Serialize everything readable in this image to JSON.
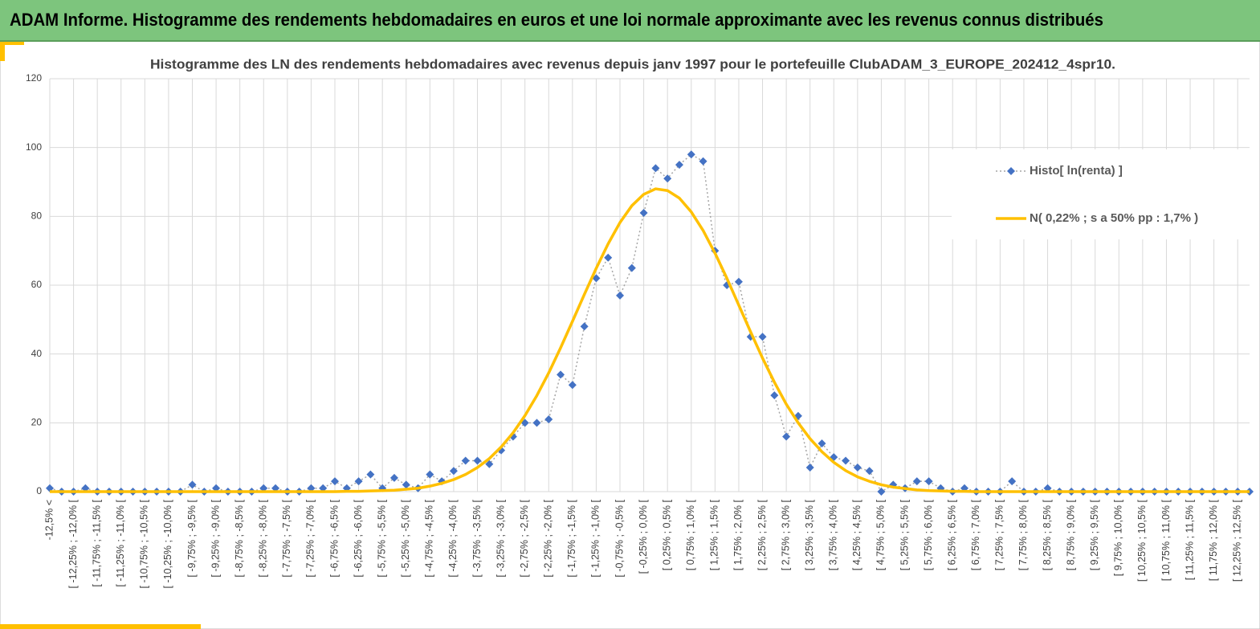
{
  "header": {
    "title": "ADAM Informe. Histogramme des rendements hebdomadaires en euros et une loi normale approximante avec les revenus connus distribués"
  },
  "chart_data": {
    "type": "line",
    "title": "Histogramme des LN des rendements hebdomadaires avec revenus depuis janv 1997 pour le portefeuille ClubADAM_3_EUROPE_202412_4spr10.",
    "categories": [
      "-12,5% <",
      null,
      "[ -12,25% ; -12,0% [",
      null,
      "[ -11,75% ; -11,5% [",
      null,
      "[ -11,25% ; -11,0% [",
      null,
      "[ -10,75% ; -10,5% [",
      null,
      "[ -10,25% ; -10,0% [",
      null,
      "[ -9,75% ; -9,5% [",
      null,
      "[ -9,25% ; -9,0% [",
      null,
      "[ -8,75% ; -8,5% [",
      null,
      "[ -8,25% ; -8,0% [",
      null,
      "[ -7,75% ; -7,5% [",
      null,
      "[ -7,25% ; -7,0% [",
      null,
      "[ -6,75% ; -6,5% [",
      null,
      "[ -6,25% ; -6,0% [",
      null,
      "[ -5,75% ; -5,5% [",
      null,
      "[ -5,25% ; -5,0% [",
      null,
      "[ -4,75% ; -4,5% [",
      null,
      "[ -4,25% ; -4,0% [",
      null,
      "[ -3,75% ; -3,5% [",
      null,
      "[ -3,25% ; -3,0% [",
      null,
      "[ -2,75% ; -2,5% [",
      null,
      "[ -2,25% ; -2,0% [",
      null,
      "[ -1,75% ; -1,5% [",
      null,
      "[ -1,25% ; -1,0% [",
      null,
      "[ -0,75% ; -0,5% [",
      null,
      "[ -0,25% ; 0,0% [",
      null,
      "[ 0,25% ; 0,5% [",
      null,
      "[ 0,75% ; 1,0% [",
      null,
      "[ 1,25% ; 1,5% [",
      null,
      "[ 1,75% ; 2,0% [",
      null,
      "[ 2,25% ; 2,5% [",
      null,
      "[ 2,75% ; 3,0% [",
      null,
      "[ 3,25% ; 3,5% [",
      null,
      "[ 3,75% ; 4,0% [",
      null,
      "[ 4,25% ; 4,5% [",
      null,
      "[ 4,75% ; 5,0% [",
      null,
      "[ 5,25% ; 5,5% [",
      null,
      "[ 5,75% ; 6,0% [",
      null,
      "[ 6,25% ; 6,5% [",
      null,
      "[ 6,75% ; 7,0% [",
      null,
      "[ 7,25% ; 7,5% [",
      null,
      "[ 7,75% ; 8,0% [",
      null,
      "[ 8,25% ; 8,5% [",
      null,
      "[ 8,75% ; 9,0% [",
      null,
      "[ 9,25% ; 9,5% [",
      null,
      "[ 9,75% ; 10,0% [",
      null,
      "[ 10,25% ; 10,5% [",
      null,
      "[ 10,75% ; 11,0% [",
      null,
      "[ 11,25% ; 11,5% [",
      null,
      "[ 11,75% ; 12,0% [",
      null,
      "[ 12,25% ; 12,5% [",
      null
    ],
    "series": [
      {
        "name": "Histo[ ln(renta) ]",
        "color": "#4472c4",
        "line_color": "#a5a5a5",
        "marker": "diamond",
        "dash": "dotted",
        "values": [
          1,
          0,
          0,
          1,
          0,
          0,
          0,
          0,
          0,
          0,
          0,
          0,
          2,
          0,
          1,
          0,
          0,
          0,
          1,
          1,
          0,
          0,
          1,
          1,
          3,
          1,
          3,
          5,
          1,
          4,
          2,
          1,
          5,
          3,
          6,
          9,
          9,
          8,
          12,
          16,
          20,
          20,
          21,
          34,
          31,
          48,
          62,
          68,
          57,
          65,
          81,
          94,
          91,
          95,
          98,
          96,
          70,
          60,
          61,
          45,
          45,
          28,
          16,
          22,
          7,
          14,
          10,
          9,
          7,
          6,
          0,
          2,
          1,
          3,
          3,
          1,
          0,
          1,
          0,
          0,
          0,
          3,
          0,
          0,
          1,
          0,
          0,
          0,
          0,
          0,
          0,
          0,
          0,
          0,
          0,
          0,
          0,
          0,
          0,
          0,
          0,
          0
        ]
      },
      {
        "name": "N( 0,22% ; s a 50% pp : 1,7% )",
        "color": "#ffc000",
        "marker": "none",
        "dash": "solid",
        "values": [
          0,
          0,
          0,
          0,
          0,
          0,
          0,
          0,
          0,
          0,
          0,
          0,
          0,
          0,
          0,
          0,
          0,
          0,
          0,
          0,
          0,
          0,
          0,
          0,
          0,
          0.1,
          0.1,
          0.2,
          0.3,
          0.4,
          0.7,
          1.0,
          1.6,
          2.4,
          3.5,
          5.0,
          7.0,
          9.6,
          13.0,
          17.1,
          22.1,
          27.9,
          34.5,
          41.8,
          49.5,
          57.3,
          64.9,
          72.0,
          78.2,
          83.1,
          86.4,
          88.0,
          87.5,
          85.3,
          81.3,
          75.9,
          69.3,
          62.0,
          54.2,
          46.4,
          38.8,
          31.8,
          25.4,
          20.0,
          15.4,
          11.6,
          8.5,
          6.1,
          4.3,
          3.0,
          2.0,
          1.3,
          0.9,
          0.5,
          0.3,
          0.2,
          0.1,
          0.1,
          0,
          0,
          0,
          0,
          0,
          0,
          0,
          0,
          0,
          0,
          0,
          0,
          0,
          0,
          0,
          0,
          0,
          0,
          0,
          0,
          0,
          0,
          0,
          0
        ]
      }
    ],
    "ylim": [
      0,
      120
    ],
    "yticks": [
      0,
      20,
      40,
      60,
      80,
      100,
      120
    ],
    "grid": true,
    "legend": "right"
  }
}
